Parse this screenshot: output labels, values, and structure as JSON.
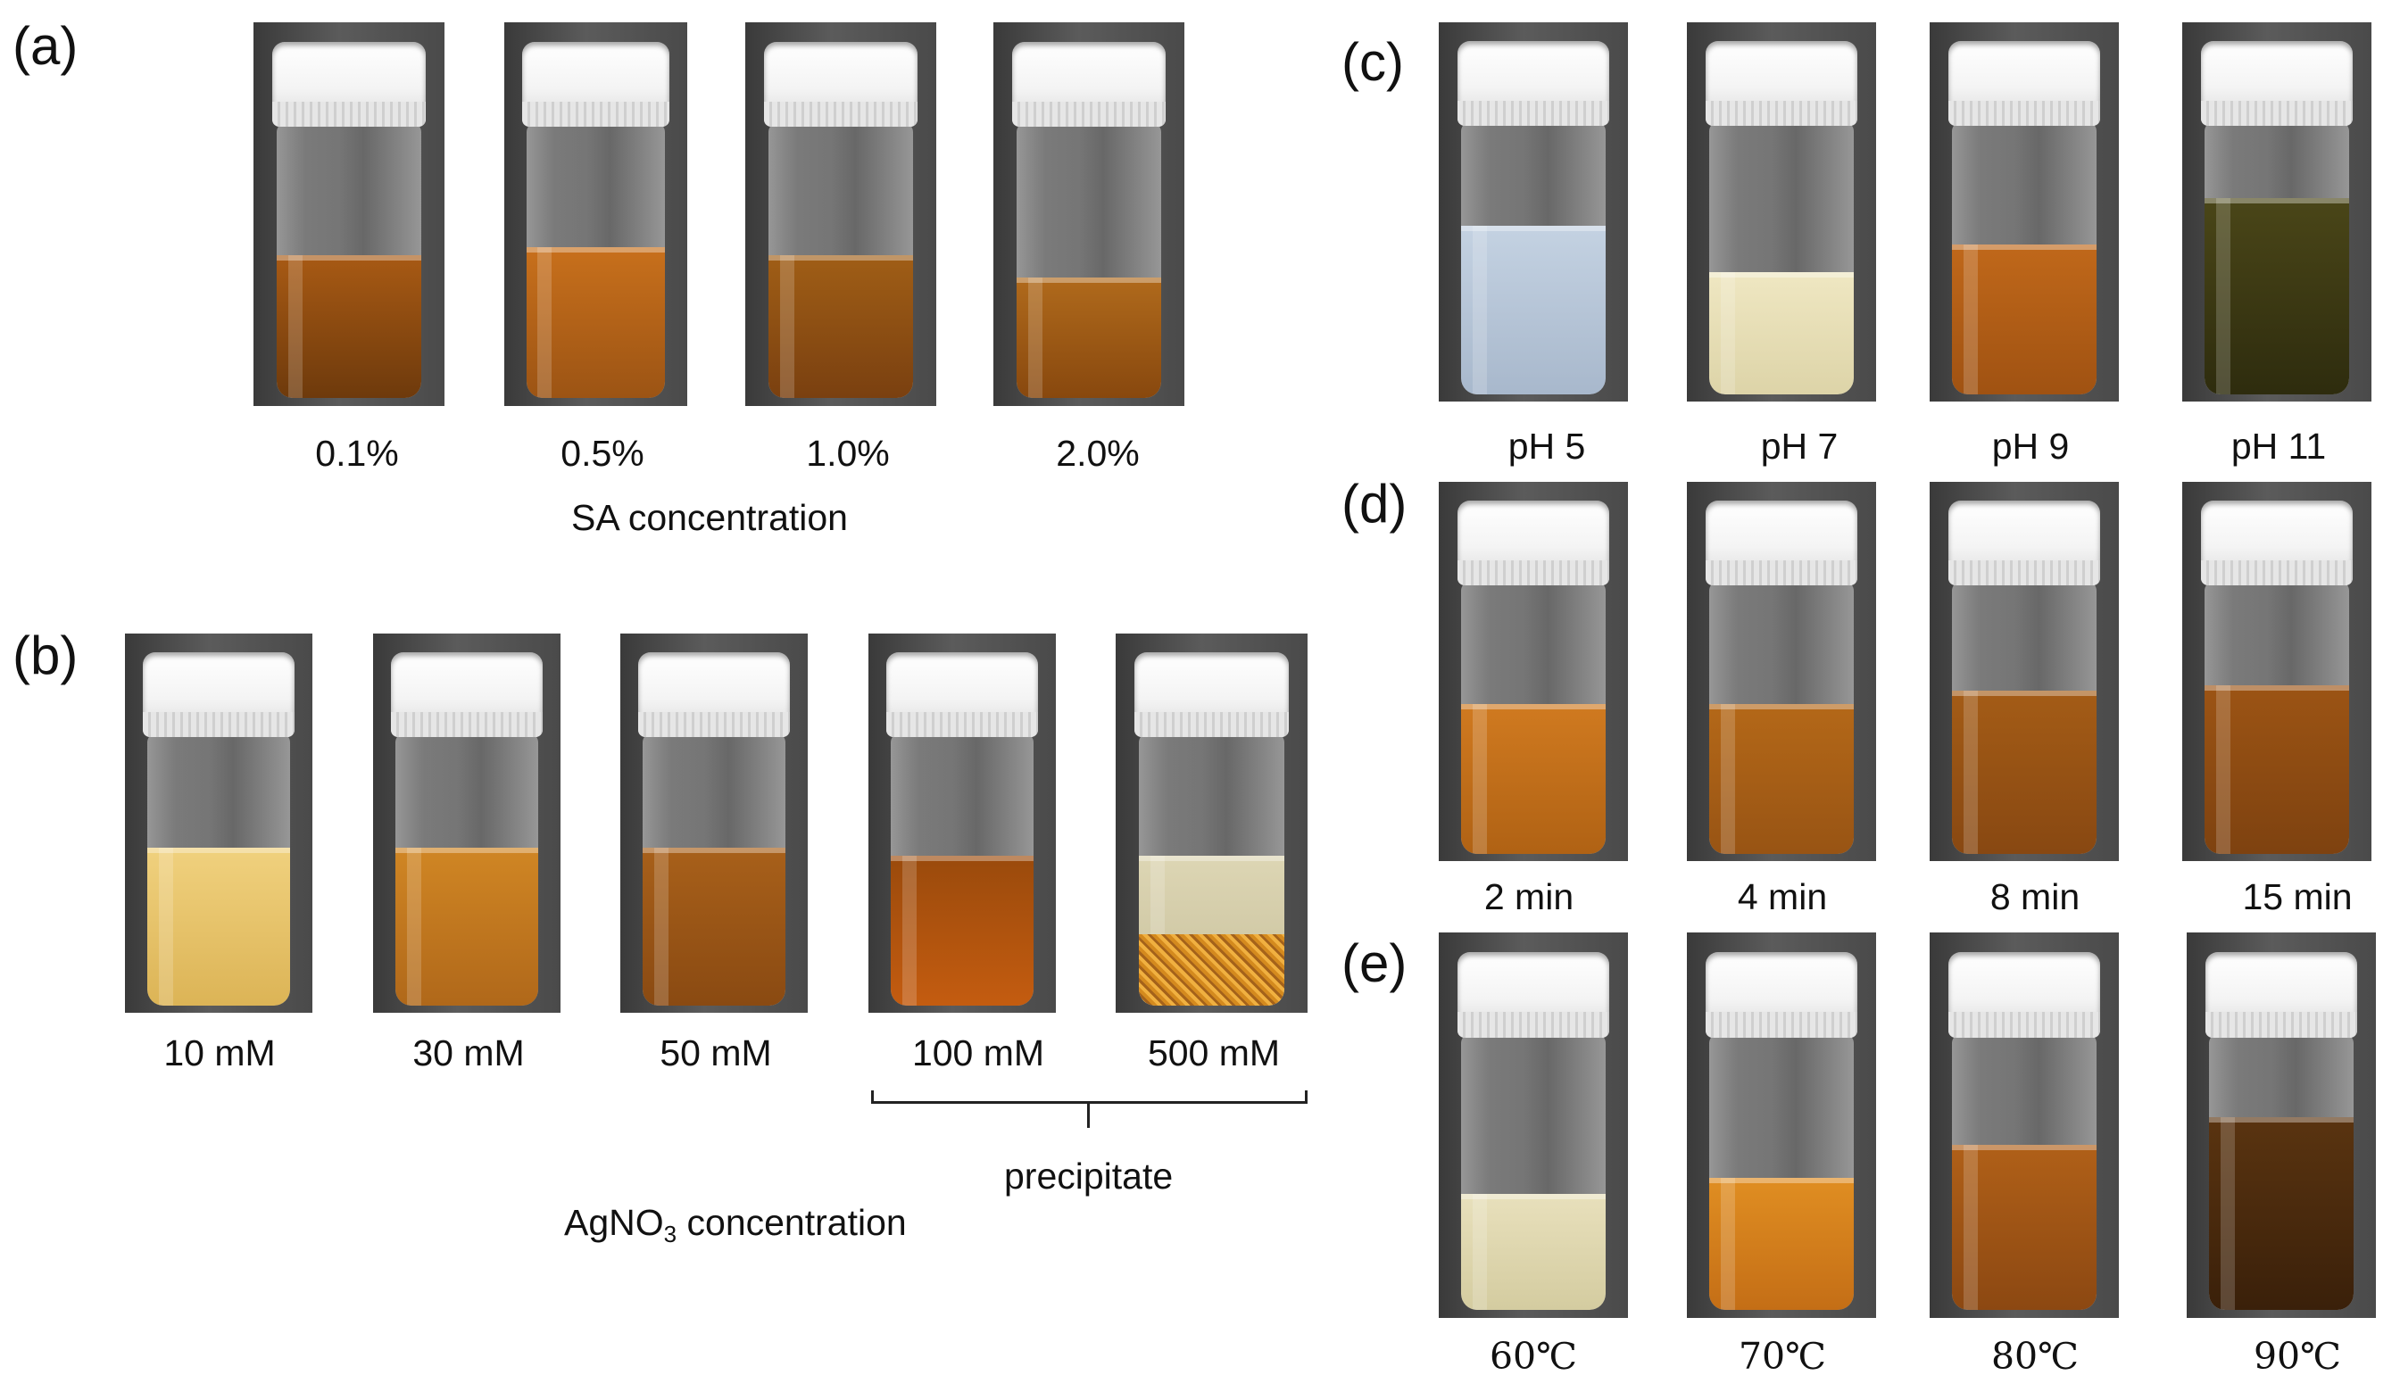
{
  "panel_labels": [
    "(a)",
    "(b)",
    "(c)",
    "(d)",
    "(e)"
  ],
  "panel_a": {
    "captions": [
      "0.1%",
      "0.5%",
      "1.0%",
      "2.0%"
    ],
    "axis_title": "SA concentration",
    "liquid_colors": [
      "#8a4a10",
      "#b8641a",
      "#8e5214",
      "#9c5a18"
    ]
  },
  "panel_b": {
    "captions": [
      "10 mM",
      "30 mM",
      "50 mM",
      "100 mM",
      "500 mM"
    ],
    "axis_title_main": "AgNO",
    "axis_title_sub": "3",
    "axis_title_tail": " concentration",
    "bracket_label": "precipitate",
    "liquid_colors": [
      "#e8c46a",
      "#c57a1e",
      "#9c5a18",
      "#8a3a08",
      "#cfc7a0"
    ]
  },
  "panel_c": {
    "captions": [
      "pH 5",
      "pH 7",
      "pH 9",
      "pH 11"
    ],
    "liquid_colors": [
      "#b7c7d8",
      "#e8e0b8",
      "#b8641a",
      "#3e3a16"
    ]
  },
  "panel_d": {
    "captions": [
      "2 min",
      "4 min",
      "8 min",
      "15 min"
    ],
    "liquid_colors": [
      "#c06c18",
      "#a85e16",
      "#975414",
      "#8e4c12"
    ]
  },
  "panel_e": {
    "captions": [
      "60℃",
      "70℃",
      "80℃",
      "90℃"
    ],
    "liquid_colors": [
      "#ddd5b0",
      "#d68620",
      "#a85a18",
      "#4a2a0c"
    ]
  }
}
